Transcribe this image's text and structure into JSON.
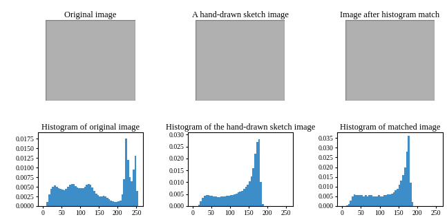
{
  "images": [
    {
      "title": "Original image"
    },
    {
      "title": "A hand-drawn sketch image"
    },
    {
      "title": "Image after histogram match"
    }
  ],
  "chart_data": [
    {
      "type": "histogram",
      "title": "Histogram of original image",
      "color": "#3c8dc8",
      "bins": [
        0,
        5,
        10,
        15,
        20,
        25,
        30,
        35,
        40,
        45,
        50,
        55,
        60,
        65,
        70,
        75,
        80,
        85,
        90,
        95,
        100,
        105,
        110,
        115,
        120,
        125,
        130,
        135,
        140,
        145,
        150,
        155,
        160,
        165,
        170,
        175,
        180,
        185,
        190,
        195,
        200,
        205,
        210,
        215,
        220,
        225,
        230,
        235,
        240,
        245,
        250,
        255
      ],
      "counts": [
        0,
        0,
        0.001,
        0.003,
        0.0045,
        0.005,
        0.0053,
        0.005,
        0.0047,
        0.0045,
        0.0043,
        0.0042,
        0.0045,
        0.005,
        0.0055,
        0.0058,
        0.0057,
        0.0052,
        0.0048,
        0.0046,
        0.0046,
        0.0047,
        0.005,
        0.0055,
        0.0058,
        0.0055,
        0.0048,
        0.004,
        0.0033,
        0.0028,
        0.0025,
        0.0025,
        0.0026,
        0.0025,
        0.0022,
        0.0018,
        0.0015,
        0.0012,
        0.0011,
        0.0011,
        0.0012,
        0.0015,
        0.003,
        0.007,
        0.0175,
        0.012,
        0.0075,
        0.0065,
        0.0095,
        0.013,
        0.004
      ],
      "xlim": [
        -12.75,
        267.75
      ],
      "xticks": [
        0,
        50,
        100,
        150,
        200,
        250
      ],
      "ylim": [
        0,
        0.0192
      ],
      "yticks": [
        {
          "value": 0,
          "label": "0.0000"
        },
        {
          "value": 0.0025,
          "label": "0.0025"
        },
        {
          "value": 0.005,
          "label": "0.0050"
        },
        {
          "value": 0.0075,
          "label": "0.0075"
        },
        {
          "value": 0.01,
          "label": "0.0100"
        },
        {
          "value": 0.0125,
          "label": "0.0125"
        },
        {
          "value": 0.015,
          "label": "0.0150"
        },
        {
          "value": 0.0175,
          "label": "0.0175"
        }
      ]
    },
    {
      "type": "histogram",
      "title": "Histogram of the hand-drawn sketch image",
      "color": "#3c8dc8",
      "bins": [
        0,
        5,
        10,
        15,
        20,
        25,
        30,
        35,
        40,
        45,
        50,
        55,
        60,
        65,
        70,
        75,
        80,
        85,
        90,
        95,
        100,
        105,
        110,
        115,
        120,
        125,
        130,
        135,
        140,
        145,
        150,
        155,
        160,
        165,
        170,
        175,
        180,
        185,
        190,
        195,
        200,
        205,
        210,
        215,
        220,
        225,
        230,
        235,
        240,
        245,
        250,
        255
      ],
      "counts": [
        0,
        0,
        0,
        0.0005,
        0.002,
        0.0035,
        0.0042,
        0.0045,
        0.0045,
        0.0043,
        0.0042,
        0.004,
        0.004,
        0.0039,
        0.0039,
        0.004,
        0.004,
        0.0041,
        0.0042,
        0.0043,
        0.0045,
        0.0047,
        0.005,
        0.0053,
        0.0057,
        0.006,
        0.0065,
        0.0072,
        0.008,
        0.009,
        0.0105,
        0.0125,
        0.016,
        0.022,
        0.027,
        0.028,
        0.01,
        0.001,
        0,
        0,
        0,
        0,
        0,
        0,
        0,
        0,
        0,
        0,
        0,
        0,
        0
      ],
      "xlim": [
        -12.75,
        267.75
      ],
      "xticks": [
        0,
        50,
        100,
        150,
        200,
        250
      ],
      "ylim": [
        0,
        0.031
      ],
      "yticks": [
        {
          "value": 0,
          "label": "0.000"
        },
        {
          "value": 0.005,
          "label": "0.005"
        },
        {
          "value": 0.01,
          "label": "0.010"
        },
        {
          "value": 0.015,
          "label": "0.015"
        },
        {
          "value": 0.02,
          "label": "0.020"
        },
        {
          "value": 0.025,
          "label": "0.025"
        },
        {
          "value": 0.03,
          "label": "0.030"
        }
      ]
    },
    {
      "type": "histogram",
      "title": "Histogram of matched image",
      "color": "#3c8dc8",
      "bins": [
        0,
        5,
        10,
        15,
        20,
        25,
        30,
        35,
        40,
        45,
        50,
        55,
        60,
        65,
        70,
        75,
        80,
        85,
        90,
        95,
        100,
        105,
        110,
        115,
        120,
        125,
        130,
        135,
        140,
        145,
        150,
        155,
        160,
        165,
        170,
        175,
        180,
        185,
        190,
        195,
        200,
        205,
        210,
        215,
        220,
        225,
        230,
        235,
        240,
        245,
        250,
        255
      ],
      "counts": [
        0,
        0,
        0.0002,
        0.001,
        0.003,
        0.005,
        0.006,
        0.0055,
        0.0055,
        0.0055,
        0.0055,
        0.005,
        0.0055,
        0.005,
        0.0055,
        0.0055,
        0.005,
        0.005,
        0.005,
        0.0055,
        0.005,
        0.005,
        0.0055,
        0.0055,
        0.006,
        0.006,
        0.0065,
        0.007,
        0.008,
        0.009,
        0.011,
        0.013,
        0.016,
        0.02,
        0.028,
        0.036,
        0.012,
        0.002,
        0,
        0,
        0,
        0,
        0,
        0,
        0,
        0,
        0,
        0,
        0,
        0,
        0
      ],
      "xlim": [
        -12.75,
        267.75
      ],
      "xticks": [
        0,
        50,
        100,
        150,
        200,
        250
      ],
      "ylim": [
        0,
        0.038
      ],
      "yticks": [
        {
          "value": 0,
          "label": "0.000"
        },
        {
          "value": 0.005,
          "label": "0.005"
        },
        {
          "value": 0.01,
          "label": "0.010"
        },
        {
          "value": 0.015,
          "label": "0.015"
        },
        {
          "value": 0.02,
          "label": "0.020"
        },
        {
          "value": 0.025,
          "label": "0.025"
        },
        {
          "value": 0.03,
          "label": "0.030"
        },
        {
          "value": 0.035,
          "label": "0.035"
        }
      ]
    }
  ]
}
